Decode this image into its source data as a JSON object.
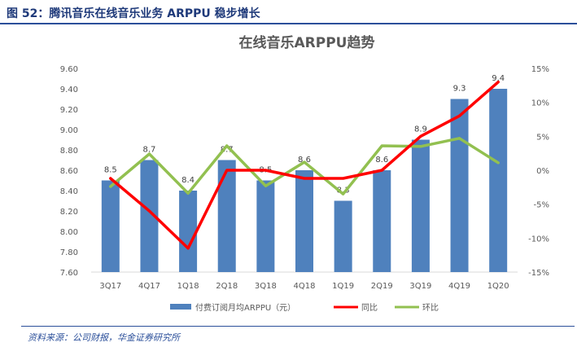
{
  "figure": {
    "caption": "图 52：腾讯音乐在线音乐业务 ARPPU 稳步增长",
    "source": "资料来源：公司财报，华金证券研究所"
  },
  "chart_data": {
    "type": "bar",
    "title": "在线音乐ARPPU趋势",
    "categories": [
      "3Q17",
      "4Q17",
      "1Q18",
      "2Q18",
      "3Q18",
      "4Q18",
      "1Q19",
      "2Q19",
      "3Q19",
      "4Q19",
      "1Q20"
    ],
    "primary_axis": {
      "ylim": [
        7.6,
        9.6
      ],
      "ticks": [
        "7.60",
        "7.80",
        "8.00",
        "8.20",
        "8.40",
        "8.60",
        "8.80",
        "9.00",
        "9.20",
        "9.40",
        "9.60"
      ]
    },
    "secondary_axis": {
      "ylim": [
        -15,
        15
      ],
      "ticks": [
        "-15%",
        "-10%",
        "-5%",
        "0%",
        "5%",
        "10%",
        "15%"
      ]
    },
    "series": [
      {
        "name": "付费订阅月均ARPPU（元）",
        "kind": "bar",
        "axis": "primary",
        "color": "#4f81bd",
        "values": [
          8.5,
          8.7,
          8.4,
          8.7,
          8.5,
          8.6,
          8.3,
          8.6,
          8.9,
          9.3,
          9.4
        ],
        "labels": [
          "8.5",
          "8.7",
          "8.4",
          "8.7",
          "8.5",
          "8.6",
          "8.3",
          "8.6",
          "8.9",
          "9.3",
          "9.4"
        ]
      },
      {
        "name": "同比",
        "kind": "line",
        "axis": "secondary",
        "color": "#ff0000",
        "values": [
          -1.2,
          -6,
          -11.5,
          0,
          0,
          -1.2,
          -1.2,
          0,
          5,
          8,
          13
        ]
      },
      {
        "name": "环比",
        "kind": "line",
        "axis": "secondary",
        "color": "#92c050",
        "values": [
          -2.4,
          2.4,
          -3.4,
          3.6,
          -2.3,
          1.2,
          -3.5,
          3.6,
          3.5,
          4.7,
          1.1
        ]
      }
    ]
  }
}
